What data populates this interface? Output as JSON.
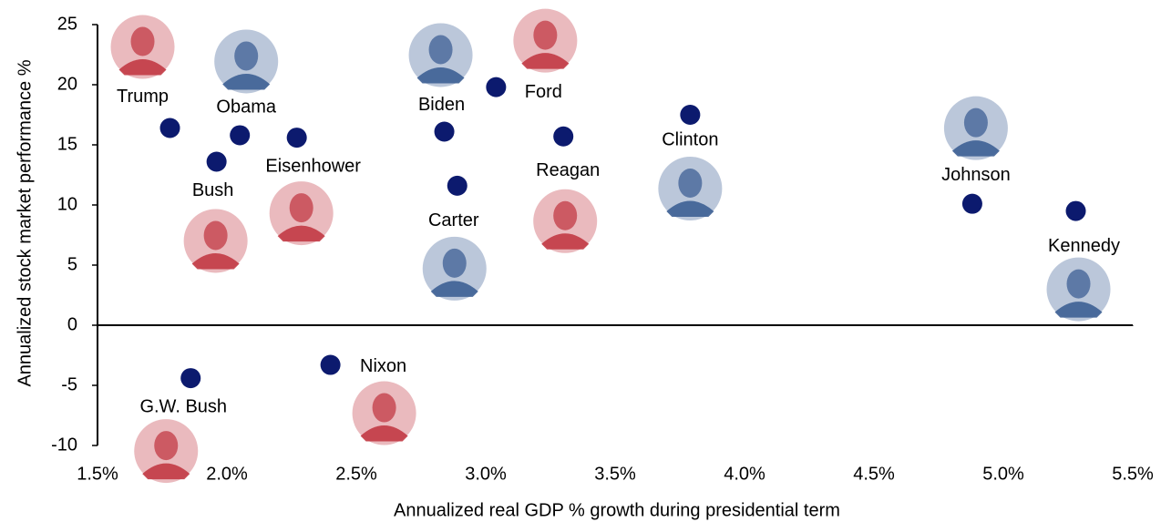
{
  "chart_data": {
    "type": "scatter",
    "x_label": "Annualized real GDP % growth during presidential term",
    "y_label": "Annualized stock market performance %",
    "labels": [
      "Trump",
      "Obama",
      "Bush",
      "Eisenhower",
      "Biden",
      "Ford",
      "Reagan",
      "Carter",
      "Clinton",
      "Johnson",
      "Kennedy",
      "G.W. Bush",
      "Nixon"
    ],
    "x": [
      1.78,
      2.05,
      1.96,
      2.27,
      2.84,
      3.04,
      3.3,
      2.89,
      3.79,
      4.88,
      5.28,
      1.86,
      2.4
    ],
    "values": [
      16.4,
      15.8,
      13.6,
      15.6,
      16.1,
      19.8,
      15.7,
      11.6,
      17.5,
      10.1,
      9.5,
      -4.4,
      -3.3
    ],
    "color": "#0c1a6e",
    "portrait_colors": [
      "#c23a44",
      "#3d5f94",
      "#c23a44",
      "#c23a44",
      "#3d5f94",
      "#c23a44",
      "#c23a44",
      "#3d5f94",
      "#3d5f94",
      "#3d5f94",
      "#3d5f94",
      "#c23a44",
      "#c23a44"
    ],
    "xlim": [
      1.5,
      5.5
    ],
    "xticks": [
      {
        "value": 1.5,
        "label": "1.5%"
      },
      {
        "value": 2.0,
        "label": "2.0%"
      },
      {
        "value": 2.5,
        "label": "2.5%"
      },
      {
        "value": 3.0,
        "label": "3.0%"
      },
      {
        "value": 3.5,
        "label": "3.5%"
      },
      {
        "value": 4.0,
        "label": "4.0%"
      },
      {
        "value": 4.5,
        "label": "4.5%"
      },
      {
        "value": 5.0,
        "label": "5.0%"
      },
      {
        "value": 5.5,
        "label": "5.5%"
      }
    ],
    "ylim": [
      -10,
      25
    ],
    "yticks": [
      25,
      20,
      15,
      10,
      5,
      0,
      -5,
      -10
    ]
  }
}
